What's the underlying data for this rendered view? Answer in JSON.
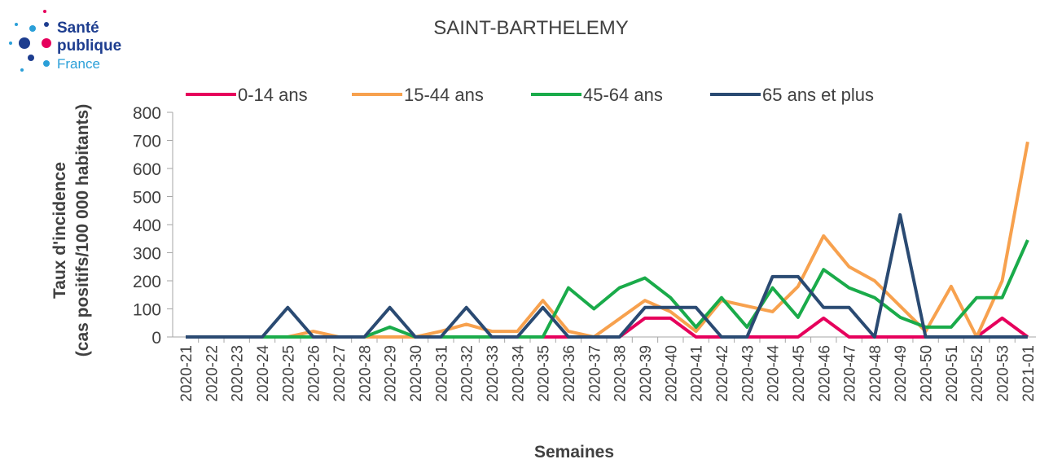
{
  "logo": {
    "line1": "Santé",
    "line2": "publique",
    "line3": "France"
  },
  "chart_data": {
    "type": "line",
    "title": "SAINT-BARTHELEMY",
    "y_label": [
      "Taux d'incidence",
      "(cas positifs/100 000 habitants)"
    ],
    "x_label": "Semaines",
    "categories": [
      "2020-21",
      "2020-22",
      "2020-23",
      "2020-24",
      "2020-25",
      "2020-26",
      "2020-27",
      "2020-28",
      "2020-29",
      "2020-30",
      "2020-31",
      "2020-32",
      "2020-33",
      "2020-34",
      "2020-35",
      "2020-36",
      "2020-37",
      "2020-38",
      "2020-39",
      "2020-40",
      "2020-41",
      "2020-42",
      "2020-43",
      "2020-44",
      "2020-45",
      "2020-46",
      "2020-47",
      "2020-48",
      "2020-49",
      "2020-50",
      "2020-51",
      "2020-52",
      "2020-53",
      "2021-01"
    ],
    "series": [
      {
        "name": "0-14 ans",
        "color": "#e6005c",
        "values": [
          0,
          0,
          0,
          0,
          0,
          0,
          0,
          0,
          0,
          0,
          0,
          0,
          0,
          0,
          0,
          0,
          0,
          0,
          67,
          67,
          0,
          0,
          0,
          0,
          0,
          67,
          0,
          0,
          0,
          0,
          0,
          0,
          67,
          0
        ]
      },
      {
        "name": "15-44 ans",
        "color": "#f7a14e",
        "values": [
          0,
          0,
          0,
          0,
          0,
          20,
          0,
          0,
          0,
          0,
          20,
          45,
          20,
          20,
          130,
          20,
          0,
          65,
          130,
          90,
          20,
          130,
          110,
          90,
          180,
          360,
          250,
          200,
          110,
          20,
          180,
          0,
          200,
          695
        ]
      },
      {
        "name": "45-64 ans",
        "color": "#1aab4a",
        "values": [
          0,
          0,
          0,
          0,
          0,
          0,
          0,
          0,
          35,
          0,
          0,
          0,
          0,
          0,
          0,
          175,
          100,
          175,
          210,
          140,
          35,
          140,
          35,
          175,
          70,
          240,
          175,
          140,
          70,
          35,
          35,
          140,
          140,
          345
        ]
      },
      {
        "name": "65 ans et plus",
        "color": "#2a4a72",
        "values": [
          0,
          0,
          0,
          0,
          105,
          0,
          0,
          0,
          105,
          0,
          0,
          105,
          0,
          0,
          105,
          0,
          0,
          0,
          105,
          105,
          105,
          0,
          0,
          215,
          215,
          105,
          105,
          0,
          435,
          0,
          0,
          0,
          0,
          0
        ]
      }
    ],
    "ylim": [
      0,
      800
    ],
    "yticks": [
      0,
      100,
      200,
      300,
      400,
      500,
      600,
      700,
      800
    ]
  }
}
